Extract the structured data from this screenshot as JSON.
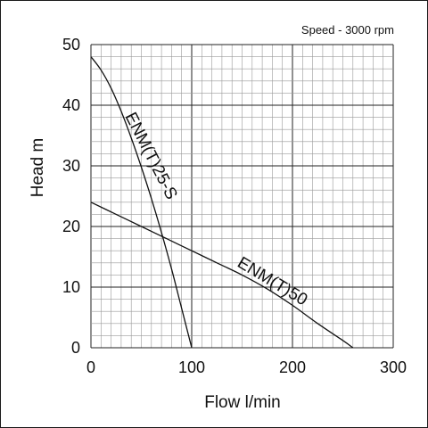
{
  "chart_data": {
    "type": "line",
    "annotation": "Speed - 3000 rpm",
    "xlabel": "Flow l/min",
    "ylabel": "Head m",
    "xlim": [
      0,
      300
    ],
    "ylim": [
      0,
      50
    ],
    "x_ticks": [
      "0",
      "100",
      "200",
      "300"
    ],
    "y_ticks": [
      "0",
      "10",
      "20",
      "30",
      "40",
      "50"
    ],
    "grid": true,
    "series": [
      {
        "name": "ENM(T)25-S",
        "x": [
          0,
          10,
          20,
          30,
          40,
          50,
          60,
          70,
          80,
          90,
          100
        ],
        "y": [
          48,
          45.8,
          42.8,
          39,
          34.6,
          29.8,
          24.6,
          19,
          13,
          6.5,
          0
        ]
      },
      {
        "name": "ENM(T)50",
        "x": [
          0,
          25,
          50,
          75,
          100,
          125,
          150,
          175,
          200,
          225,
          250,
          260
        ],
        "y": [
          24,
          22,
          20,
          18,
          16,
          14,
          12,
          9.7,
          7,
          4,
          1.2,
          0
        ]
      }
    ]
  }
}
